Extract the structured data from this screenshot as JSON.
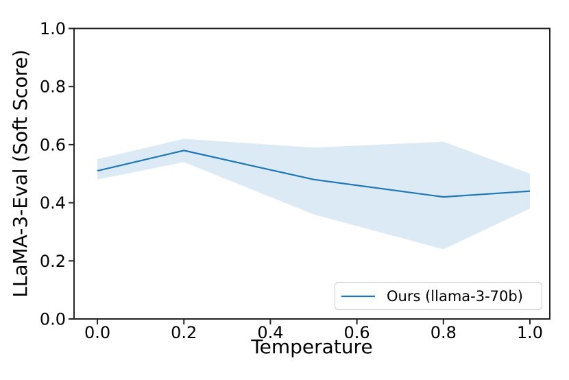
{
  "figure": {
    "background": "#ffffff"
  },
  "chart_data": {
    "type": "line",
    "xlabel": "Temperature",
    "ylabel": "LLaMA-3-Eval (Soft Score)",
    "x": [
      0.0,
      0.2,
      0.5,
      0.8,
      1.0
    ],
    "series": [
      {
        "name": "Ours (llama-3-70b)",
        "values": [
          0.51,
          0.58,
          0.48,
          0.42,
          0.44
        ],
        "band_upper": [
          0.55,
          0.62,
          0.59,
          0.61,
          0.5
        ],
        "band_lower": [
          0.48,
          0.54,
          0.36,
          0.24,
          0.38
        ],
        "line_color": "#1f77b4",
        "band_color": "#dceaf5"
      }
    ],
    "xlim": [
      -0.054,
      1.046
    ],
    "ylim": [
      0.0,
      1.0
    ],
    "x_ticks": [
      0.0,
      0.2,
      0.4,
      0.6,
      0.8,
      1.0
    ],
    "x_tick_labels": [
      "0.0",
      "0.2",
      "0.4",
      "0.6",
      "0.8",
      "1.0"
    ],
    "y_ticks": [
      0.0,
      0.2,
      0.4,
      0.6,
      0.8,
      1.0
    ],
    "y_tick_labels": [
      "0.0",
      "0.2",
      "0.4",
      "0.6",
      "0.8",
      "1.0"
    ],
    "grid": false,
    "axis_color": "#222222",
    "text_color": "#000000",
    "legend": {
      "position": "lower right",
      "entries": [
        "Ours (llama-3-70b)"
      ]
    }
  }
}
